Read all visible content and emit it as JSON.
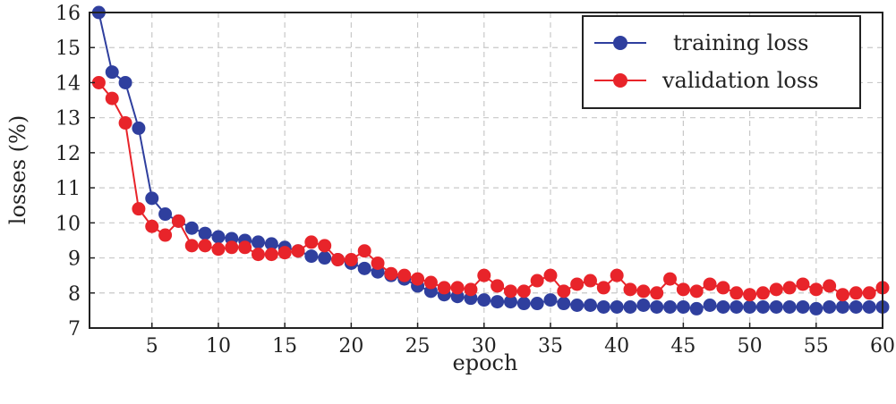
{
  "chart_data": {
    "type": "line",
    "xlabel": "epoch",
    "ylabel": "losses (%)",
    "xlim": [
      0.3,
      60
    ],
    "ylim": [
      7,
      16
    ],
    "xticks": [
      5,
      10,
      15,
      20,
      25,
      30,
      35,
      40,
      45,
      50,
      55,
      60
    ],
    "yticks": [
      7,
      8,
      9,
      10,
      11,
      12,
      13,
      14,
      15,
      16
    ],
    "grid": true,
    "legend_position": "top-right",
    "x": [
      1,
      2,
      3,
      4,
      5,
      6,
      7,
      8,
      9,
      10,
      11,
      12,
      13,
      14,
      15,
      16,
      17,
      18,
      19,
      20,
      21,
      22,
      23,
      24,
      25,
      26,
      27,
      28,
      29,
      30,
      31,
      32,
      33,
      34,
      35,
      36,
      37,
      38,
      39,
      40,
      41,
      42,
      43,
      44,
      45,
      46,
      47,
      48,
      49,
      50,
      51,
      52,
      53,
      54,
      55,
      56,
      57,
      58,
      59,
      60
    ],
    "series": [
      {
        "name": "training loss",
        "color": "#2f3f9e",
        "values": [
          16.0,
          14.3,
          14.0,
          12.7,
          10.7,
          10.25,
          10.05,
          9.85,
          9.7,
          9.6,
          9.55,
          9.5,
          9.45,
          9.4,
          9.3,
          9.2,
          9.05,
          9.0,
          8.95,
          8.85,
          8.7,
          8.6,
          8.5,
          8.4,
          8.2,
          8.05,
          7.95,
          7.9,
          7.85,
          7.8,
          7.75,
          7.75,
          7.7,
          7.7,
          7.8,
          7.7,
          7.65,
          7.65,
          7.6,
          7.6,
          7.6,
          7.65,
          7.6,
          7.6,
          7.6,
          7.55,
          7.65,
          7.6,
          7.6,
          7.6,
          7.6,
          7.6,
          7.6,
          7.6,
          7.55,
          7.6,
          7.6,
          7.6,
          7.6,
          7.6
        ]
      },
      {
        "name": "validation loss",
        "color": "#e8242a",
        "values": [
          14.0,
          13.55,
          12.85,
          10.4,
          9.9,
          9.65,
          10.05,
          9.35,
          9.35,
          9.25,
          9.3,
          9.3,
          9.1,
          9.1,
          9.15,
          9.2,
          9.45,
          9.35,
          8.95,
          8.95,
          9.2,
          8.85,
          8.55,
          8.5,
          8.4,
          8.3,
          8.15,
          8.15,
          8.1,
          8.5,
          8.2,
          8.05,
          8.05,
          8.35,
          8.5,
          8.05,
          8.25,
          8.35,
          8.15,
          8.5,
          8.1,
          8.05,
          8.0,
          8.4,
          8.1,
          8.05,
          8.25,
          8.15,
          8.0,
          7.95,
          8.0,
          8.1,
          8.15,
          8.25,
          8.1,
          8.2,
          7.95,
          8.0,
          8.0,
          8.15
        ]
      }
    ]
  }
}
